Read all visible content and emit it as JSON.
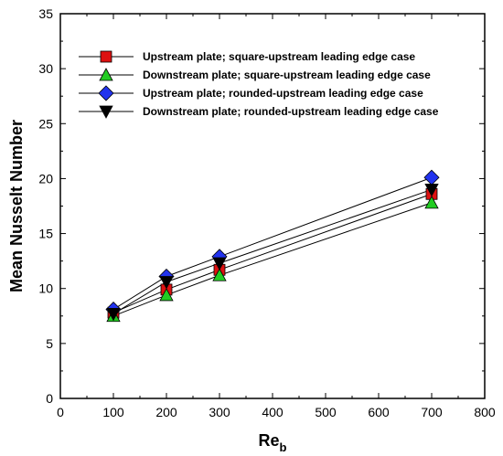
{
  "chart_data": {
    "type": "line",
    "title": "",
    "xlabel": "Re",
    "xlabel_subscript": "b",
    "ylabel": "Mean Nusselt Number",
    "xlim": [
      0,
      800
    ],
    "ylim": [
      0,
      35
    ],
    "xticks": [
      "0",
      "100",
      "200",
      "300",
      "400",
      "500",
      "600",
      "700",
      "800"
    ],
    "yticks": [
      "0",
      "5",
      "10",
      "15",
      "20",
      "25",
      "30",
      "35"
    ],
    "grid": false,
    "legend_position": "top-right",
    "x": [
      100,
      200,
      300,
      700
    ],
    "series": [
      {
        "name": "Upstream plate; square-upstream leading edge case",
        "marker": "square",
        "color": "#dd1111",
        "values": [
          7.8,
          9.9,
          11.7,
          18.6
        ]
      },
      {
        "name": "Downstream plate; square-upstream leading edge case",
        "marker": "triangle-up",
        "color": "#22cc22",
        "values": [
          7.5,
          9.4,
          11.2,
          17.8
        ]
      },
      {
        "name": "Upstream plate; rounded-upstream leading edge case",
        "marker": "diamond",
        "color": "#2233ee",
        "values": [
          8.1,
          11.1,
          12.9,
          20.1
        ]
      },
      {
        "name": "Downstream plate; rounded-upstream leading edge case",
        "marker": "triangle-down",
        "color": "#000000",
        "values": [
          7.7,
          10.6,
          12.3,
          19.0
        ]
      }
    ]
  }
}
